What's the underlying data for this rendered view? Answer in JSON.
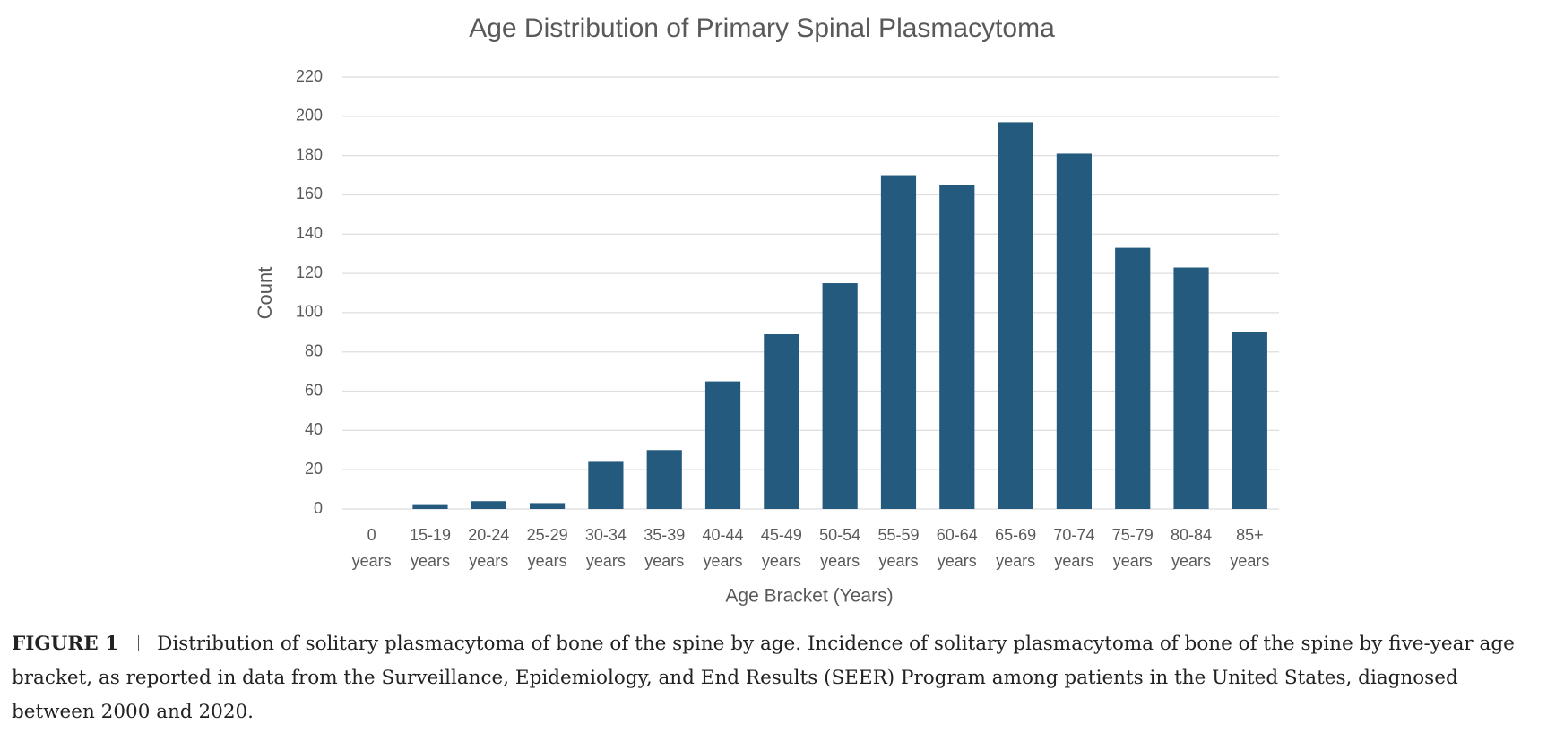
{
  "chart_data": {
    "type": "bar",
    "title": "Age Distribution of Primary Spinal Plasmacytoma",
    "y_label": "Count",
    "x_label": "Age Bracket (Years)",
    "categories": [
      "0 years",
      "15-19 years",
      "20-24 years",
      "25-29 years",
      "30-34 years",
      "35-39 years",
      "40-44 years",
      "45-49 years",
      "50-54 years",
      "55-59 years",
      "60-64 years",
      "65-69 years",
      "70-74 years",
      "75-79 years",
      "80-84 years",
      "85+ years"
    ],
    "values": [
      0,
      2,
      4,
      3,
      24,
      30,
      65,
      89,
      115,
      170,
      165,
      197,
      181,
      133,
      123,
      90
    ],
    "color": "#245a7e",
    "ylim": [
      0,
      220
    ],
    "yticks": [
      0,
      20,
      40,
      60,
      80,
      100,
      120,
      140,
      160,
      180,
      200,
      220
    ],
    "grid": true
  },
  "caption": {
    "label": "FIGURE 1",
    "text": "Distribution of solitary plasmacytoma of bone of the spine by age. Incidence of solitary plasmacytoma of bone of the spine by five-year age bracket, as reported in data from the Surveillance, Epidemiology, and End Results (SEER) Program among patients in the United States, diagnosed between 2000 and 2020."
  }
}
